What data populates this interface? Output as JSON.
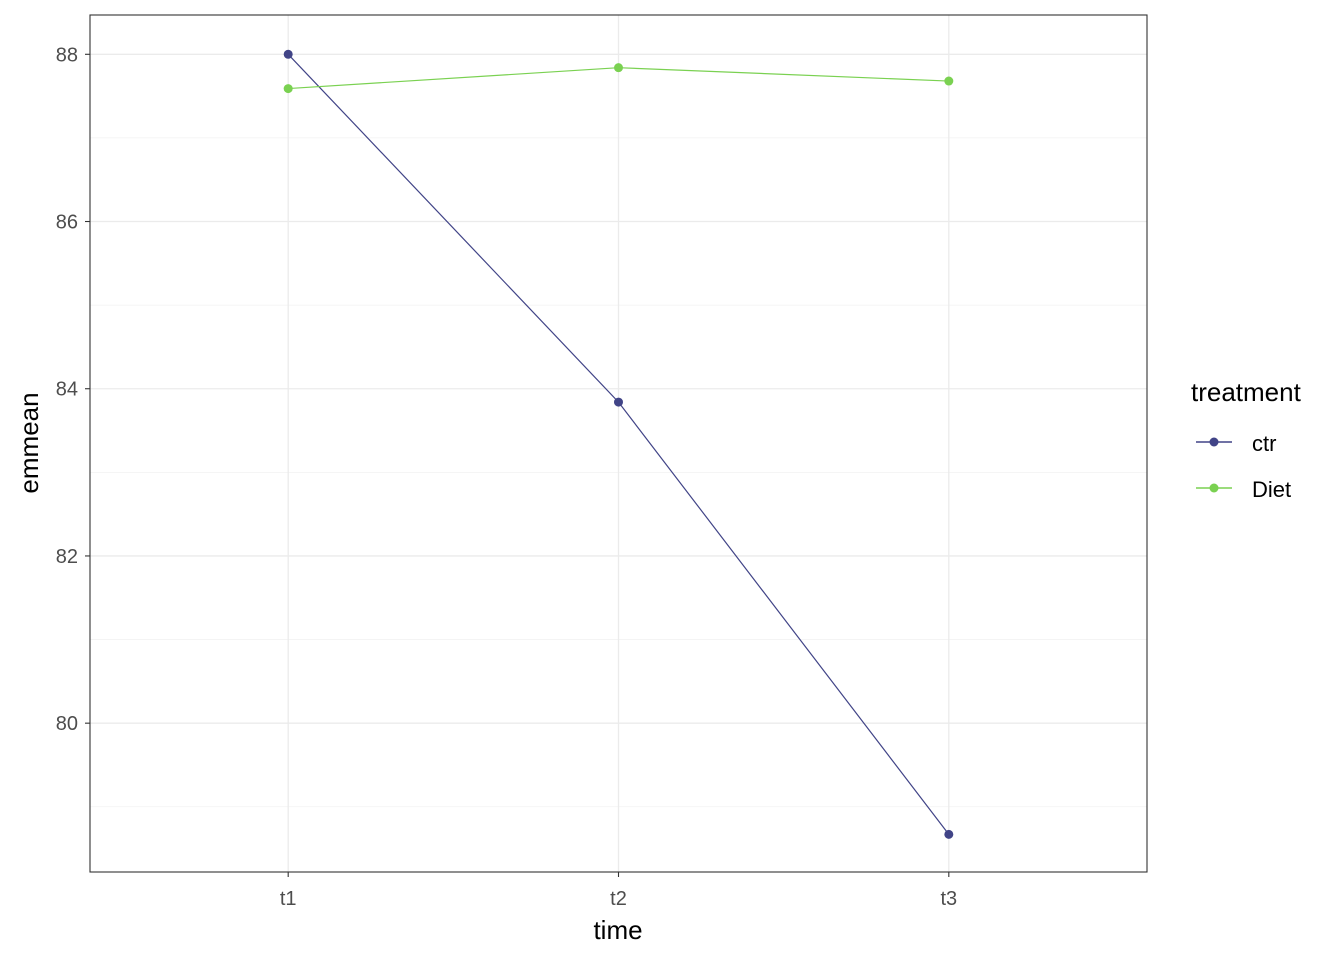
{
  "chart_data": {
    "type": "line",
    "title": "",
    "xlabel": "time",
    "ylabel": "emmean",
    "categories": [
      "t1",
      "t2",
      "t3"
    ],
    "ylim": [
      78.22,
      88.47
    ],
    "yticks": [
      80,
      82,
      84,
      86,
      88
    ],
    "grid": true,
    "legend": {
      "title": "treatment",
      "placement": "right"
    },
    "series": [
      {
        "name": "ctr",
        "color": "#414487",
        "values": [
          88.0,
          83.84,
          78.67
        ]
      },
      {
        "name": "Diet",
        "color": "#7AD151",
        "values": [
          87.59,
          87.84,
          87.68
        ]
      }
    ]
  }
}
